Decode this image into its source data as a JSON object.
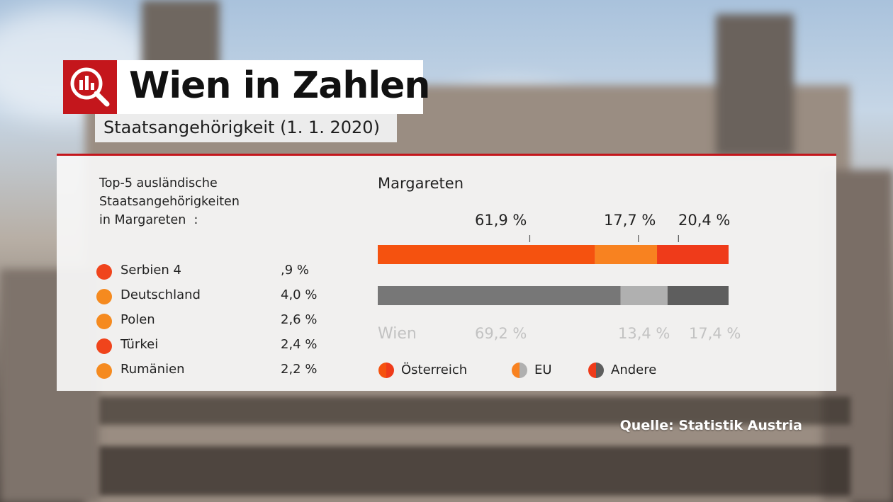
{
  "header": {
    "title": "Wien in Zahlen",
    "subtitle": "Staatsangehörigkeit (1. 1. 2020)",
    "logo_icon": "chart-magnifier-icon"
  },
  "top5": {
    "heading": "Top-5 ausländische\nStaatsangehörigkeiten\nin Margareten  :",
    "items": [
      {
        "name": "Serbien 4",
        "value": ",9 %",
        "color": "#f0441c"
      },
      {
        "name": "Deutschland",
        "value": "4,0 %",
        "color": "#f58a1f"
      },
      {
        "name": "Polen",
        "value": "2,6 %",
        "color": "#f58a1f"
      },
      {
        "name": "Türkei",
        "value": "2,4 %",
        "color": "#f0441c"
      },
      {
        "name": "Rumänien",
        "value": "2,2 %",
        "color": "#f58a1f"
      }
    ]
  },
  "source": "Quelle: Statistik Austria",
  "chart_data": {
    "type": "bar",
    "orientation": "horizontal-stacked",
    "title": "Margareten",
    "categories": [
      "Margareten",
      "Wien"
    ],
    "series": [
      {
        "name": "Österreich",
        "values": [
          61.9,
          69.2
        ],
        "colors": [
          "#f5520f",
          "#777777"
        ]
      },
      {
        "name": "EU",
        "values": [
          17.7,
          13.4
        ],
        "colors": [
          "#f88220",
          "#b0b0b0"
        ]
      },
      {
        "name": "Andere",
        "values": [
          20.4,
          17.4
        ],
        "colors": [
          "#ef3b1a",
          "#5e5e5e"
        ]
      }
    ],
    "value_labels": {
      "Margareten": [
        "61,9 %",
        "17,7 %",
        "20,4  %"
      ],
      "Wien": [
        "69,2  %",
        "13,4 %",
        "17,4 %"
      ]
    },
    "category_labels": {
      "Margareten": "Margareten",
      "Wien": "Wien"
    },
    "legend": {
      "position": "bottom",
      "items": [
        {
          "label": "Österreich",
          "colors": [
            "#f5520f",
            "#ef3b1a"
          ]
        },
        {
          "label": "EU",
          "colors": [
            "#f88220",
            "#b0b0b0"
          ]
        },
        {
          "label": "Andere",
          "colors": [
            "#ef3b1a",
            "#5e5e5e"
          ]
        }
      ]
    },
    "xlim": [
      0,
      100
    ],
    "grid": false
  }
}
